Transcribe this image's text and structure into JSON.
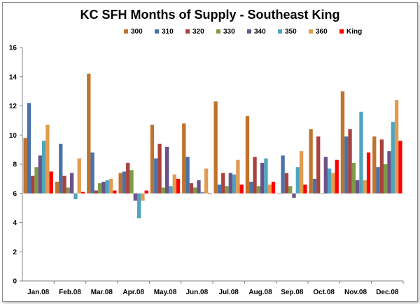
{
  "chart_data": {
    "type": "bar",
    "title": "KC SFH Months of Supply - Southeast King",
    "xlabel": "",
    "ylabel": "",
    "ylim": [
      0,
      16
    ],
    "yticks": [
      0,
      2,
      4,
      6,
      8,
      10,
      12,
      14,
      16
    ],
    "bar_base": 6,
    "grid": false,
    "legend_position": "top-right",
    "categories": [
      "Jan.08",
      "Feb.08",
      "Mar.08",
      "Apr.08",
      "May.08",
      "Jun.08",
      "Jul.08",
      "Aug.08",
      "Sep.08",
      "Oct.08",
      "Nov.08",
      "Dec.08"
    ],
    "series": [
      {
        "name": "300",
        "color": "#C0732B",
        "values": [
          9.8,
          6.8,
          14.2,
          7.4,
          10.7,
          10.8,
          12.3,
          11.3,
          6.0,
          10.4,
          13.0,
          9.9
        ]
      },
      {
        "name": "310",
        "color": "#4A72A8",
        "values": [
          12.2,
          9.4,
          8.8,
          7.5,
          8.4,
          8.5,
          6.6,
          6.8,
          8.6,
          7.0,
          9.9,
          7.8
        ]
      },
      {
        "name": "320",
        "color": "#A8423E",
        "values": [
          7.2,
          7.2,
          6.2,
          8.1,
          9.4,
          6.7,
          7.4,
          8.5,
          7.4,
          9.9,
          10.4,
          9.7
        ]
      },
      {
        "name": "330",
        "color": "#7F9A48",
        "values": [
          7.8,
          6.4,
          6.7,
          7.6,
          6.4,
          6.4,
          6.5,
          6.5,
          6.5,
          6.0,
          8.1,
          8.0
        ]
      },
      {
        "name": "340",
        "color": "#6A528A",
        "values": [
          8.6,
          7.4,
          6.8,
          5.5,
          9.2,
          6.9,
          7.4,
          8.1,
          5.7,
          8.5,
          6.9,
          8.9
        ]
      },
      {
        "name": "350",
        "color": "#4FA4BE",
        "values": [
          9.6,
          5.6,
          6.9,
          4.3,
          6.5,
          6.1,
          7.3,
          8.4,
          7.8,
          7.7,
          11.6,
          10.9
        ]
      },
      {
        "name": "360",
        "color": "#E39B4F",
        "values": [
          10.7,
          8.4,
          7.0,
          5.5,
          7.3,
          7.7,
          8.3,
          6.6,
          8.9,
          7.4,
          6.9,
          12.4
        ]
      },
      {
        "name": "King",
        "color": "#FF0000",
        "values": [
          7.5,
          6.1,
          6.2,
          6.2,
          7.0,
          6.0,
          6.6,
          6.8,
          6.6,
          8.3,
          8.8,
          9.6
        ]
      }
    ]
  }
}
